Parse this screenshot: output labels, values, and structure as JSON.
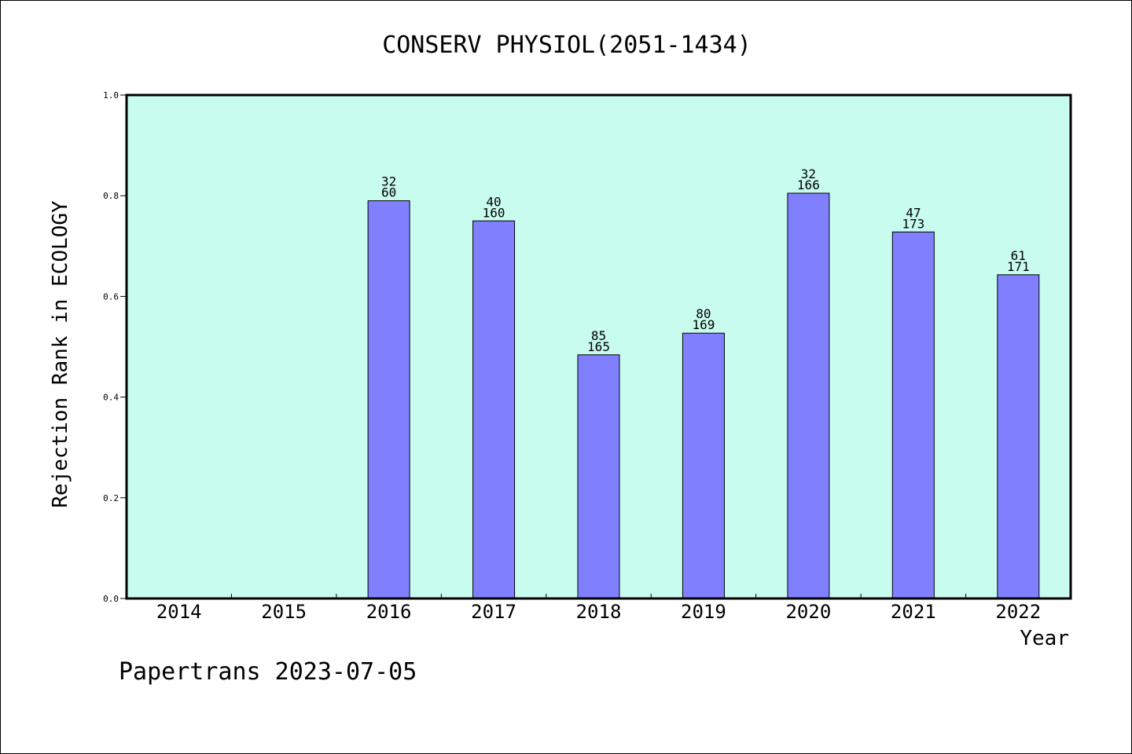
{
  "colors": {
    "plot_background": "#c8fcee",
    "bar_fill": "#8080ff",
    "bar_stroke": "#000000"
  },
  "footer": {
    "text": "Papertrans 2023-07-05"
  },
  "chart_data": {
    "type": "bar",
    "title": "CONSERV PHYSIOL(2051-1434)",
    "xlabel": "Year",
    "ylabel": "Rejection Rank in ECOLOGY",
    "ylim": [
      0,
      1.0
    ],
    "yticks": [
      "0.0",
      "0.2",
      "0.4",
      "0.6",
      "0.8",
      "1.0"
    ],
    "grid": false,
    "categories": [
      "2014",
      "2015",
      "2016",
      "2017",
      "2018",
      "2019",
      "2020",
      "2021",
      "2022"
    ],
    "values": [
      null,
      null,
      0.79,
      0.75,
      0.484,
      0.527,
      0.805,
      0.728,
      0.643
    ],
    "labels": [
      null,
      null,
      {
        "top": "32",
        "bottom": "60"
      },
      {
        "top": "40",
        "bottom": "160"
      },
      {
        "top": "85",
        "bottom": "165"
      },
      {
        "top": "80",
        "bottom": "169"
      },
      {
        "top": "32",
        "bottom": "166"
      },
      {
        "top": "47",
        "bottom": "173"
      },
      {
        "top": "61",
        "bottom": "171"
      }
    ]
  }
}
